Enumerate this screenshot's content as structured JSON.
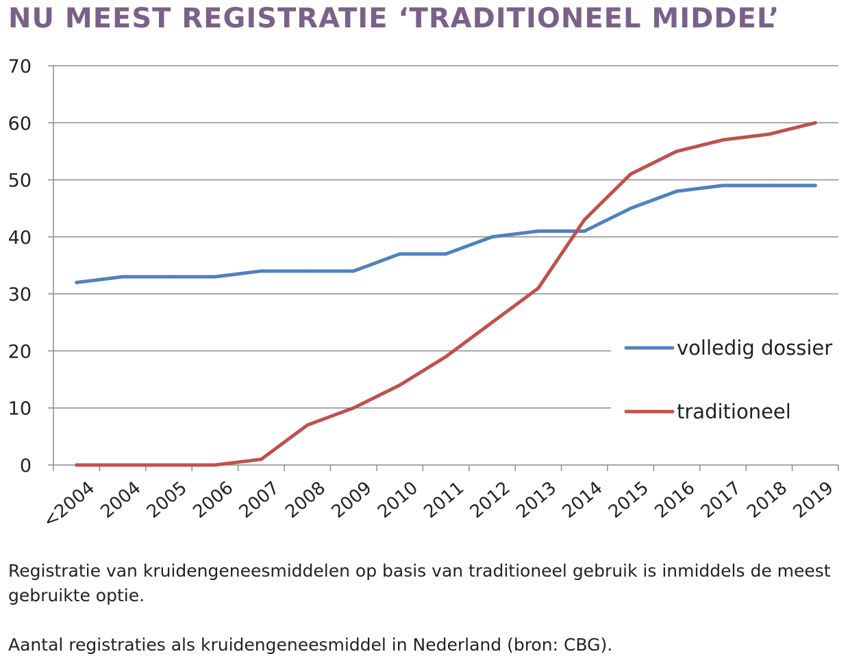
{
  "title": "NU MEEST REGISTRATIE ‘TRADITIONEEL MIDDEL’",
  "captions": {
    "line1": "Registratie van kruidengeneesmiddelen op basis van traditioneel gebruik is inmiddels de meest gebruikte optie.",
    "line2": "Aantal registraties als kruidengeneesmiddel in Nederland (bron: CBG)."
  },
  "chart_data": {
    "type": "line",
    "categories": [
      "<2004",
      "2004",
      "2005",
      "2006",
      "2007",
      "2008",
      "2009",
      "2010",
      "2011",
      "2012",
      "2013",
      "2014",
      "2015",
      "2016",
      "2017",
      "2018",
      "2019"
    ],
    "series": [
      {
        "name": "volledig dossier",
        "color": "#4f81bd",
        "values": [
          32,
          33,
          33,
          33,
          34,
          34,
          34,
          37,
          37,
          40,
          41,
          41,
          45,
          48,
          49,
          49,
          49
        ]
      },
      {
        "name": "traditioneel",
        "color": "#c0504d",
        "values": [
          0,
          0,
          0,
          0,
          1,
          7,
          10,
          14,
          19,
          25,
          31,
          43,
          51,
          55,
          57,
          58,
          60
        ]
      }
    ],
    "ylim": [
      0,
      70
    ],
    "yticks": [
      0,
      10,
      20,
      30,
      40,
      50,
      60,
      70
    ],
    "grid": true,
    "legend": "right"
  }
}
